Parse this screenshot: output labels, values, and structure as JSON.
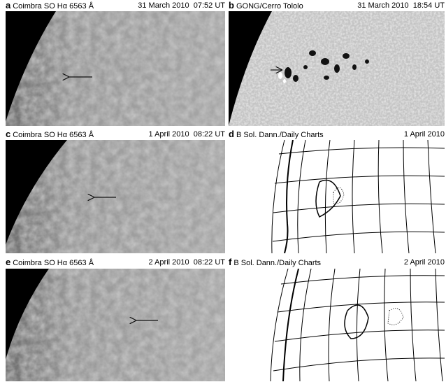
{
  "panels": [
    {
      "letter": "a",
      "source": "Coimbra SO Hα 6563 Å",
      "date": "31 March 2010  07:52 UT"
    },
    {
      "letter": "b",
      "source": "GONG/Cerro Tololo",
      "date": "31 March 2010  18:54 UT"
    },
    {
      "letter": "c",
      "source": "Coimbra SO Hα 6563 Å",
      "date": "1 April 2010  08:22 UT"
    },
    {
      "letter": "d",
      "source": "B Sol. Dann./Daily Charts",
      "date": "1 April 2010"
    },
    {
      "letter": "e",
      "source": "Coimbra SO Hα 6563 Å",
      "date": "2 April 2010  08:22 UT"
    },
    {
      "letter": "f",
      "source": "B Sol. Dann./Daily Charts",
      "date": "2 April 2010"
    }
  ]
}
